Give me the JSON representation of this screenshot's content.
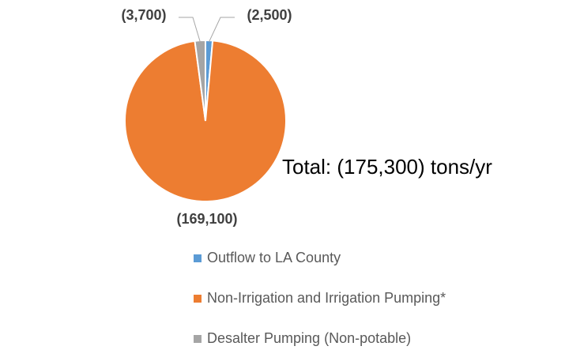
{
  "chart_data": {
    "type": "pie",
    "categories": [
      "Outflow to LA County",
      "Non-Irrigation and Irrigation Pumping*",
      "Desalter Pumping (Non-potable)"
    ],
    "values": [
      2500,
      169100,
      3700
    ],
    "value_labels": [
      "(2,500)",
      "(169,100)",
      "(3,700)"
    ],
    "colors": [
      "#5b9bd5",
      "#ed7d31",
      "#a5a5a5"
    ],
    "annotation": "Total: (175,300) tons/yr"
  }
}
